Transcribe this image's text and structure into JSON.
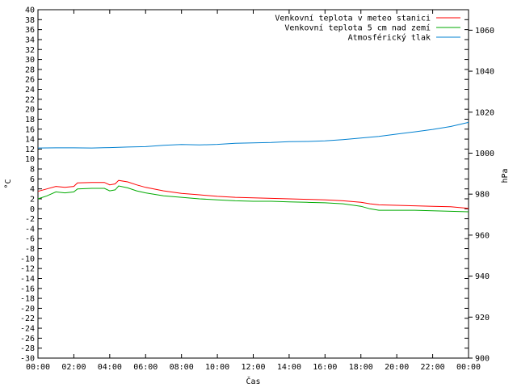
{
  "chart_data": {
    "type": "line",
    "xlabel": "Čas",
    "ylabel": "°C",
    "y2label": "hPa",
    "x_ticks": [
      "00:00",
      "02:00",
      "04:00",
      "06:00",
      "08:00",
      "10:00",
      "12:00",
      "14:00",
      "16:00",
      "18:00",
      "20:00",
      "22:00",
      "00:00"
    ],
    "x_range_hours": [
      0,
      24
    ],
    "ylim": [
      -30,
      40
    ],
    "y_tick_step": 2,
    "y2lim": [
      900,
      1070
    ],
    "y2_tick_step": 20,
    "grid": false,
    "legend_position": "top-right",
    "series": [
      {
        "name": "Venkovní teplota v meteo stanici",
        "axis": "y",
        "color": "#ff0000",
        "x": [
          0,
          0.5,
          1.0,
          1.5,
          2.0,
          2.2,
          3.0,
          3.7,
          4.0,
          4.3,
          4.5,
          5.0,
          5.5,
          6.0,
          7.0,
          8.0,
          9.0,
          10.0,
          11.0,
          12.0,
          13.0,
          14.0,
          15.0,
          16.0,
          17.0,
          18.0,
          18.5,
          19.0,
          20.0,
          21.0,
          22.0,
          23.0,
          24.0
        ],
        "values": [
          3.5,
          4.0,
          4.5,
          4.3,
          4.5,
          5.2,
          5.3,
          5.3,
          4.8,
          5.0,
          5.7,
          5.4,
          4.8,
          4.3,
          3.6,
          3.1,
          2.8,
          2.5,
          2.3,
          2.2,
          2.1,
          2.0,
          1.9,
          1.8,
          1.6,
          1.3,
          1.0,
          0.8,
          0.7,
          0.6,
          0.5,
          0.4,
          0.1
        ]
      },
      {
        "name": "Venkovní teplota 5 cm nad zemí",
        "axis": "y",
        "color": "#00aa00",
        "x": [
          0,
          0.5,
          1.0,
          1.5,
          2.0,
          2.2,
          3.0,
          3.7,
          4.0,
          4.3,
          4.5,
          5.0,
          5.5,
          6.0,
          7.0,
          8.0,
          9.0,
          10.0,
          11.0,
          12.0,
          13.0,
          14.0,
          15.0,
          16.0,
          17.0,
          18.0,
          18.5,
          19.0,
          20.0,
          21.0,
          22.0,
          23.0,
          24.0
        ],
        "values": [
          2.0,
          2.6,
          3.4,
          3.2,
          3.4,
          4.0,
          4.1,
          4.1,
          3.6,
          3.8,
          4.6,
          4.2,
          3.6,
          3.2,
          2.6,
          2.3,
          2.0,
          1.8,
          1.6,
          1.5,
          1.5,
          1.4,
          1.3,
          1.2,
          1.0,
          0.5,
          0.0,
          -0.3,
          -0.3,
          -0.3,
          -0.4,
          -0.5,
          -0.6
        ]
      },
      {
        "name": "Atmosférický tlak",
        "axis": "y2",
        "color": "#0080d0",
        "x": [
          0,
          1,
          2,
          3,
          4,
          5,
          6,
          7,
          8,
          9,
          10,
          11,
          12,
          13,
          14,
          15,
          16,
          17,
          18,
          19,
          20,
          21,
          22,
          23,
          24
        ],
        "values": [
          1002.5,
          1002.6,
          1002.6,
          1002.5,
          1002.7,
          1003.0,
          1003.2,
          1003.8,
          1004.2,
          1004.0,
          1004.3,
          1004.8,
          1005.0,
          1005.2,
          1005.6,
          1005.7,
          1006.0,
          1006.6,
          1007.4,
          1008.2,
          1009.3,
          1010.4,
          1011.6,
          1013.0,
          1015.0
        ]
      }
    ]
  }
}
